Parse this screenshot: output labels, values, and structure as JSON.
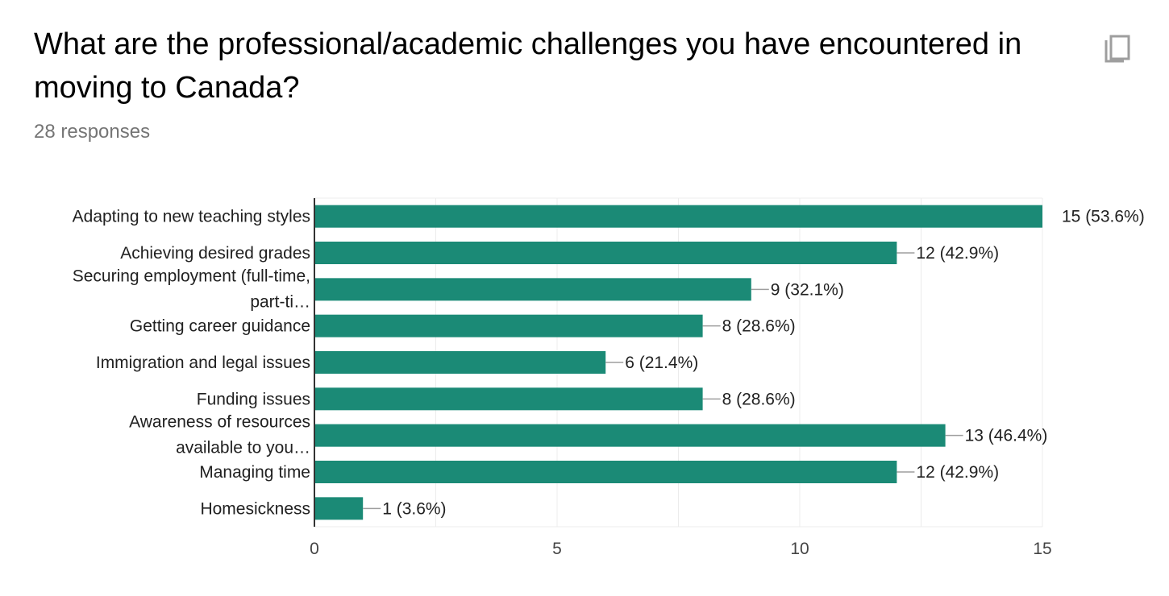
{
  "question": {
    "title": "What are the professional/academic challenges you have encountered in moving to Canada?",
    "responses": "28 responses"
  },
  "icons": {
    "copy": "copy-icon"
  },
  "colors": {
    "bar": "#1b8a76",
    "grid": "#ececec",
    "axis": "#333333"
  },
  "chart_data": {
    "type": "bar",
    "orientation": "horizontal",
    "categories": [
      [
        "Adapting to new teaching styles"
      ],
      [
        "Achieving desired grades"
      ],
      [
        "Securing employment (full-time,",
        "part-ti…"
      ],
      [
        "Getting career guidance"
      ],
      [
        "Immigration and legal issues"
      ],
      [
        "Funding issues"
      ],
      [
        "Awareness of resources",
        "available to you…"
      ],
      [
        "Managing time"
      ],
      [
        "Homesickness"
      ]
    ],
    "values": [
      15,
      12,
      9,
      8,
      6,
      8,
      13,
      12,
      1
    ],
    "data_labels": [
      "15 (53.6%)",
      "12 (42.9%)",
      "9 (32.1%)",
      "8 (28.6%)",
      "6 (21.4%)",
      "8 (28.6%)",
      "13 (46.4%)",
      "12 (42.9%)",
      "1 (3.6%)"
    ],
    "xlim": [
      0,
      15
    ],
    "xticks": [
      "0",
      "5",
      "10",
      "15"
    ],
    "grid": true
  }
}
